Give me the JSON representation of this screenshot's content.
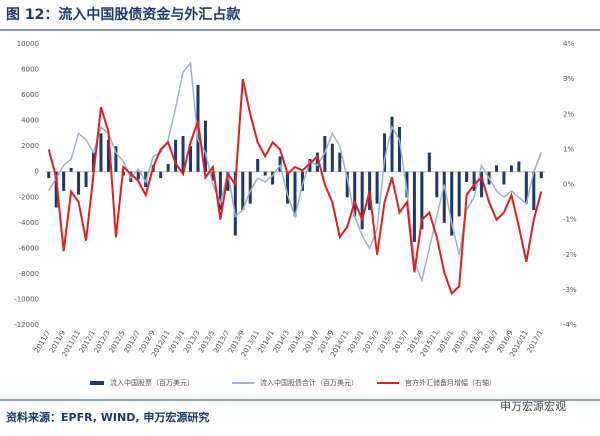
{
  "chart_data": {
    "type": "bar",
    "title": "图 12：流入中国股债资金与外汇占款",
    "source": "资料来源：EPFR, WIND, 申万宏源研究",
    "watermark": "申万宏源宏观",
    "legend": "bottom",
    "categories": [
      "2011/7",
      null,
      "2011/9",
      null,
      "2011/11",
      null,
      "2012/1",
      null,
      "2012/3",
      null,
      "2012/5",
      null,
      "2012/7",
      null,
      "2012/9",
      null,
      "2012/11",
      null,
      "2013/1",
      null,
      "2013/3",
      null,
      "2013/5",
      null,
      "2013/7",
      null,
      "2013/9",
      null,
      "2013/11",
      null,
      "2014/1",
      null,
      "2014/3",
      null,
      "2014/5",
      null,
      "2014/7",
      null,
      "2014/9",
      null,
      "2014/11",
      null,
      "2015/1",
      null,
      "2015/3",
      null,
      "2015/5",
      null,
      "2015/7",
      null,
      "2015/9",
      null,
      "2015/11",
      null,
      "2016/1",
      null,
      "2016/3",
      null,
      "2016/5",
      null,
      "2016/7",
      null,
      "2016/9",
      null,
      "2016/11",
      null,
      "2017/1"
    ],
    "ylim": [
      -12000,
      10000
    ],
    "yticks": [
      -12000,
      -10000,
      -8000,
      -6000,
      -4000,
      -2000,
      0,
      2000,
      4000,
      6000,
      8000,
      10000
    ],
    "y2lim": [
      -4,
      4
    ],
    "y2ticks": [
      {
        "value": -4,
        "label": "-4%"
      },
      {
        "value": -3,
        "label": "-3%"
      },
      {
        "value": -2,
        "label": "-2%"
      },
      {
        "value": -1,
        "label": "-1%"
      },
      {
        "value": 0,
        "label": "0%"
      },
      {
        "value": 1,
        "label": "1%"
      },
      {
        "value": 2,
        "label": "2%"
      },
      {
        "value": 3,
        "label": "3%"
      },
      {
        "value": 4,
        "label": "4%"
      }
    ],
    "series": [
      {
        "name": "流入中国股票（百万美元）",
        "type": "bar",
        "color": "#1f3864",
        "values": [
          -500,
          -2800,
          -1500,
          300,
          -1800,
          -1200,
          1500,
          3000,
          2500,
          2000,
          -300,
          -800,
          -600,
          -1200,
          500,
          -500,
          600,
          2500,
          2800,
          2000,
          6800,
          4000,
          -700,
          -3000,
          -1500,
          -5000,
          -3000,
          -2500,
          1000,
          -300,
          -1000,
          1200,
          -2500,
          -3500,
          -1500,
          1000,
          1500,
          2800,
          2200,
          1500,
          -2000,
          -3500,
          -4500,
          -3000,
          -2500,
          3000,
          4300,
          3500,
          -2000,
          -5500,
          -4500,
          1500,
          -2000,
          -4000,
          -5000,
          -3500,
          -800,
          -1500,
          -2000,
          -1000,
          500,
          -1000,
          500,
          800,
          -2500,
          -3000,
          -500
        ]
      },
      {
        "name": "流入中国股债合计（百万美元）",
        "type": "line",
        "color": "#9db3d3",
        "values": [
          -1500,
          -500,
          500,
          1000,
          3000,
          2500,
          1500,
          3500,
          3000,
          1500,
          800,
          -500,
          200,
          -800,
          1200,
          1500,
          2500,
          5000,
          7800,
          8500,
          2500,
          1500,
          -1000,
          -2500,
          0,
          -3500,
          -3000,
          -1500,
          -500,
          -800,
          -300,
          500,
          -1800,
          -3500,
          -1000,
          800,
          500,
          1500,
          3000,
          2000,
          -500,
          -3500,
          -5000,
          -6000,
          -4500,
          1000,
          3500,
          2500,
          -1500,
          -7000,
          -8500,
          -6000,
          -3500,
          -1000,
          -4000,
          -6500,
          -3000,
          -2000,
          500,
          -500,
          -1500,
          -2000,
          -1500,
          -2000,
          -2500,
          0,
          1500
        ]
      },
      {
        "name": "官方外汇储备月增幅（右轴）",
        "type": "line",
        "axis": "y2",
        "color": "#e02020",
        "values": [
          1.0,
          0.2,
          -1.9,
          -0.2,
          -0.5,
          -1.6,
          0.3,
          2.2,
          1.5,
          -1.5,
          0.5,
          0.3,
          0.1,
          -0.3,
          0.5,
          1.0,
          1.2,
          0.6,
          0.3,
          1.2,
          1.8,
          0.2,
          0.5,
          -1.0,
          0.3,
          0.0,
          3.0,
          2.0,
          1.2,
          0.8,
          1.2,
          1.0,
          0.3,
          0.5,
          0.4,
          0.6,
          0.8,
          0.0,
          -0.5,
          -1.5,
          -1.2,
          -0.5,
          -1.0,
          -0.2,
          -2.0,
          -0.5,
          0.2,
          -0.8,
          -0.5,
          -2.5,
          -1.0,
          -0.8,
          -1.5,
          -2.5,
          -3.1,
          -2.9,
          -0.3,
          0.0,
          0.2,
          -0.5,
          -1.0,
          -0.8,
          -0.3,
          -1.2,
          -2.2,
          -1.0,
          -0.2
        ]
      }
    ]
  }
}
